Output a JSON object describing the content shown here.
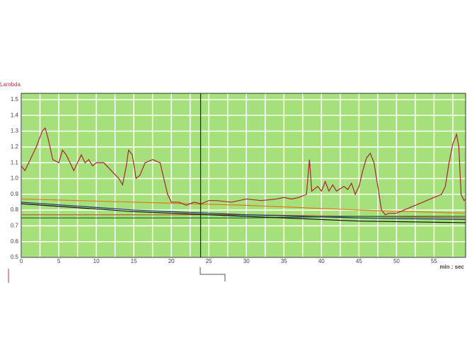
{
  "chart_data": {
    "type": "line",
    "y_label": "Lambda",
    "x_label": "min : sec",
    "xlim": [
      0,
      59.2
    ],
    "ylim": [
      0.5,
      1.54
    ],
    "xticks": [
      0,
      5,
      10,
      15,
      20,
      25,
      30,
      35,
      40,
      45,
      50,
      55
    ],
    "yticks": [
      {
        "value": 1.5,
        "label": "1.5"
      },
      {
        "value": 1.4,
        "label": "1.4"
      },
      {
        "value": 1.3,
        "label": "1.3"
      },
      {
        "value": 1.2,
        "label": "1.2"
      },
      {
        "value": 1.1,
        "label": "1.1"
      },
      {
        "value": 1,
        "label": "1.0"
      },
      {
        "value": 0.9,
        "label": "0.9"
      },
      {
        "value": 0.8,
        "label": "0.8"
      },
      {
        "value": 0.7,
        "label": "0.7"
      },
      {
        "value": 0.6,
        "label": "0.6"
      },
      {
        "value": 0.5,
        "label": "0.5"
      }
    ],
    "grid": true,
    "background": "#a6e07a",
    "cursor_x": 23.9,
    "series": [
      {
        "color": "#b0203a",
        "x": [
          0,
          0.5,
          1,
          2,
          2.8,
          3.2,
          3.6,
          4.2,
          5,
          5.5,
          6,
          7,
          7.5,
          8,
          8.5,
          9,
          9.5,
          10,
          11,
          12,
          13,
          13.5,
          14,
          14.3,
          14.8,
          15.3,
          15.8,
          16.5,
          17.5,
          18.5,
          19,
          19.5,
          20,
          21,
          22,
          23,
          24,
          25,
          26,
          28,
          30,
          32,
          34,
          35,
          36,
          37,
          38,
          38.4,
          38.7,
          39.5,
          40,
          40.5,
          41,
          41.5,
          42,
          43,
          43.5,
          44,
          44.5,
          45,
          45.5,
          46,
          46.5,
          47,
          47.5,
          48,
          48.5,
          49,
          50,
          51,
          52,
          53,
          54,
          55,
          56,
          56.5,
          57,
          57.5,
          58,
          58.3,
          58.6,
          59,
          59.2
        ],
        "values": [
          1.08,
          1.05,
          1.1,
          1.2,
          1.3,
          1.32,
          1.25,
          1.12,
          1.1,
          1.18,
          1.15,
          1.05,
          1.1,
          1.15,
          1.1,
          1.12,
          1.08,
          1.1,
          1.1,
          1.05,
          1.0,
          0.96,
          1.08,
          1.18,
          1.15,
          1.0,
          1.02,
          1.1,
          1.12,
          1.1,
          1.0,
          0.9,
          0.85,
          0.85,
          0.83,
          0.85,
          0.84,
          0.86,
          0.86,
          0.85,
          0.87,
          0.86,
          0.87,
          0.88,
          0.87,
          0.88,
          0.9,
          1.12,
          0.92,
          0.95,
          0.92,
          0.98,
          0.92,
          0.96,
          0.92,
          0.95,
          0.93,
          0.97,
          0.9,
          0.95,
          1.05,
          1.13,
          1.16,
          1.1,
          0.95,
          0.8,
          0.77,
          0.78,
          0.78,
          0.8,
          0.82,
          0.84,
          0.86,
          0.88,
          0.9,
          0.95,
          1.1,
          1.22,
          1.28,
          1.2,
          0.9,
          0.86,
          0.87
        ]
      },
      {
        "color": "#e07820",
        "x": [
          0,
          15,
          30,
          45,
          59.2
        ],
        "values": [
          0.87,
          0.85,
          0.83,
          0.8,
          0.78
        ]
      },
      {
        "color": "#1c2f7a",
        "x": [
          0,
          15,
          30,
          45,
          59.2
        ],
        "values": [
          0.85,
          0.8,
          0.77,
          0.75,
          0.74
        ]
      },
      {
        "color": "#111111",
        "x": [
          0,
          15,
          30,
          45,
          59.2
        ],
        "values": [
          0.84,
          0.79,
          0.76,
          0.73,
          0.72
        ]
      },
      {
        "color": "#1f6e3a",
        "x": [
          0,
          15,
          30,
          45,
          59.2
        ],
        "values": [
          0.75,
          0.75,
          0.75,
          0.76,
          0.76
        ]
      },
      {
        "color": "#b5652a",
        "x": [
          0,
          15,
          30,
          45,
          59.2
        ],
        "values": [
          0.77,
          0.77,
          0.77,
          0.76,
          0.75
        ]
      }
    ]
  }
}
